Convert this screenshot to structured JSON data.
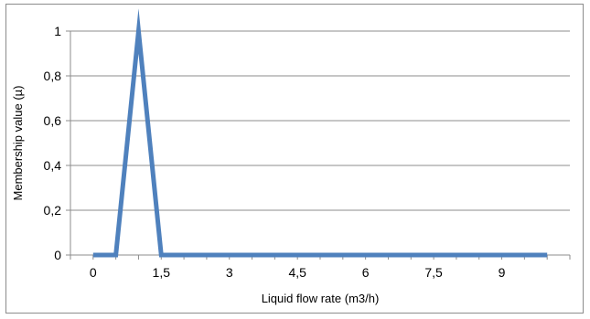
{
  "chart_data": {
    "type": "line",
    "title": "",
    "xlabel": "Liquid flow rate (m3/h)",
    "ylabel": "Membership value (µ)",
    "xlim": [
      -0.5,
      10.5
    ],
    "ylim": [
      0,
      1
    ],
    "x_ticks": [
      0,
      1.5,
      3,
      4.5,
      6,
      7.5,
      9
    ],
    "x_tick_labels": [
      "0",
      "1,5",
      "3",
      "4,5",
      "6",
      "7,5",
      "9"
    ],
    "y_ticks": [
      0,
      0.2,
      0.4,
      0.6,
      0.8,
      1
    ],
    "y_tick_labels": [
      "0",
      "0,2",
      "0,4",
      "0,6",
      "0,8",
      "1"
    ],
    "grid": "horizontal",
    "legend": "none",
    "series": [
      {
        "color": "#4f81bd",
        "x": [
          0,
          0.5,
          1,
          1.5,
          2,
          2.5,
          3,
          3.5,
          4,
          4.5,
          5,
          5.5,
          6,
          6.5,
          7,
          7.5,
          8,
          8.5,
          9,
          9.5,
          10
        ],
        "y": [
          0,
          0,
          1,
          0,
          0,
          0,
          0,
          0,
          0,
          0,
          0,
          0,
          0,
          0,
          0,
          0,
          0,
          0,
          0,
          0,
          0
        ]
      }
    ]
  }
}
